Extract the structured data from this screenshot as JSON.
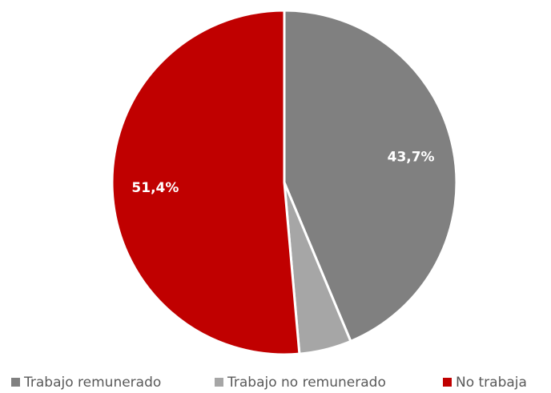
{
  "chart_data": {
    "type": "pie",
    "categories": [
      "Trabajo remunerado",
      "Trabajo no remunerado",
      "No trabaja"
    ],
    "values": [
      43.7,
      4.9,
      51.4
    ],
    "value_labels": [
      "43,7%",
      null,
      "51,4%"
    ],
    "colors": [
      "#808080",
      "#a6a6a6",
      "#c00000"
    ],
    "legend": "bottom"
  }
}
